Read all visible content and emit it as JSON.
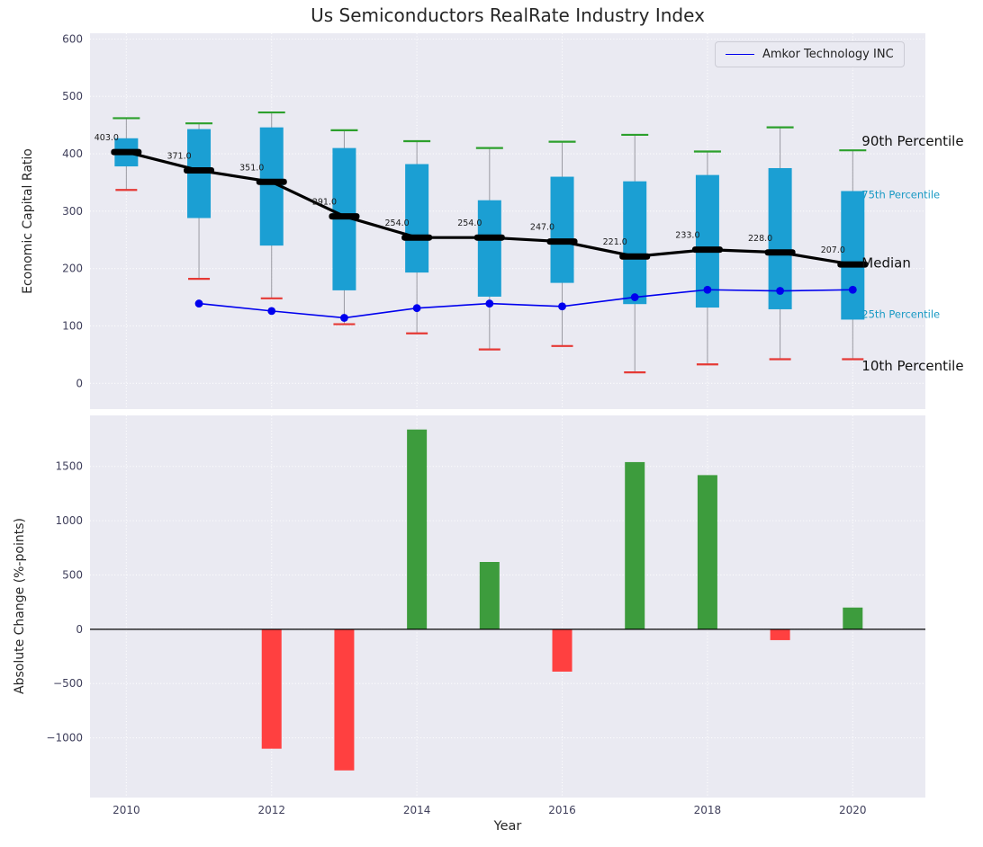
{
  "figure": {
    "title": "Us Semiconductors RealRate Industry Index",
    "x_ticks": [
      2010,
      2012,
      2014,
      2016,
      2018,
      2020
    ]
  },
  "chart_data": [
    {
      "type": "boxplot+line",
      "title": "Us Semiconductors RealRate Industry Index",
      "ylabel": "Economic Capital Ratio",
      "ylim": [
        -45,
        610
      ],
      "yticks": [
        0,
        100,
        200,
        300,
        400,
        500,
        600
      ],
      "xlim": [
        2009.5,
        2021.0
      ],
      "grid": true,
      "years": [
        2010,
        2011,
        2012,
        2013,
        2014,
        2015,
        2016,
        2017,
        2018,
        2019,
        2020
      ],
      "p90": [
        462,
        453,
        472,
        441,
        422,
        410,
        421,
        433,
        404,
        446,
        406
      ],
      "p75": [
        427,
        443,
        446,
        410,
        382,
        319,
        360,
        352,
        363,
        375,
        335
      ],
      "median": [
        403,
        371,
        351,
        291,
        254,
        254,
        247,
        221,
        233,
        228,
        207
      ],
      "median_labels": [
        "403.0",
        "371.0",
        "351.0",
        "291.0",
        "254.0",
        "254.0",
        "247.0",
        "221.0",
        "233.0",
        "228.0",
        "207.0"
      ],
      "p25": [
        378,
        288,
        240,
        162,
        193,
        151,
        175,
        138,
        132,
        129,
        111
      ],
      "p10": [
        337,
        182,
        148,
        103,
        87,
        59,
        65,
        19,
        33,
        42,
        42
      ],
      "series_line": {
        "name": "Amkor Technology INC",
        "years": [
          2011,
          2012,
          2013,
          2014,
          2015,
          2016,
          2017,
          2018,
          2019,
          2020
        ],
        "values": [
          139,
          126,
          114,
          131,
          139,
          134,
          150,
          163,
          161,
          163
        ],
        "color": "#0000ee"
      },
      "right_labels": [
        {
          "text": "90th Percentile",
          "value": 422,
          "color": "#111111",
          "size": 15
        },
        {
          "text": "75th Percentile",
          "value": 330,
          "color": "#1899c4",
          "size": 11.5
        },
        {
          "text": "Median",
          "value": 210,
          "color": "#111111",
          "size": 15
        },
        {
          "text": "25th Percentile",
          "value": 122,
          "color": "#1899c4",
          "size": 11.5
        },
        {
          "text": "10th Percentile",
          "value": 30,
          "color": "#111111",
          "size": 15
        }
      ],
      "colors": {
        "box": "#1b9fd3",
        "cap_top": "#2ca02c",
        "cap_bottom": "#e53935",
        "whisker": "#9a9aa2",
        "median_line": "#000000"
      },
      "legend_position": "upper right"
    },
    {
      "type": "bar",
      "ylabel": "Absolute Change (%-points)",
      "xlabel": "Year",
      "ylim": [
        -1550,
        1970
      ],
      "yticks": [
        -1000,
        -500,
        0,
        500,
        1000,
        1500
      ],
      "xlim": [
        2009.5,
        2021.0
      ],
      "grid": true,
      "years": [
        2012,
        2013,
        2014,
        2015,
        2016,
        2017,
        2018,
        2019,
        2020
      ],
      "values": [
        -1100,
        -1300,
        1840,
        620,
        -390,
        1540,
        1420,
        -100,
        200
      ],
      "positive_color": "#3d9c3d",
      "negative_color": "#ff4040"
    }
  ]
}
